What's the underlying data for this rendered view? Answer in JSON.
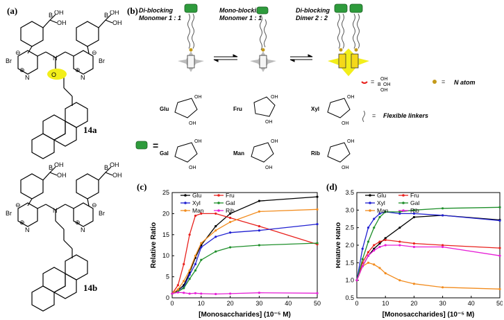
{
  "figure": {
    "panel_labels": {
      "a": "(a)",
      "b": "(b)",
      "c": "(c)",
      "d": "(d)"
    },
    "compounds": [
      "14a",
      "14b"
    ],
    "atoms": {
      "boron": "B",
      "hydroxyl": "OH",
      "bromide": "Br",
      "nitrogen": "N",
      "oxygen": "O",
      "charge_minus": "⊖",
      "charge_plus": "⊕"
    },
    "scheme": {
      "states": [
        {
          "line1": "Di-blocking",
          "line2": "Monomer 1 : 1"
        },
        {
          "line1": "Mono-blocking",
          "line2": "Monomer 1 : 1"
        },
        {
          "line1": "Di-blocking",
          "line2": "Dimer 2 : 2"
        }
      ],
      "legend": {
        "boronic_eq": "=",
        "n_atom": "N atom",
        "linkers": "Flexible linkers",
        "sugar_eq": "="
      },
      "sugars": [
        "Glu",
        "Fru",
        "Xyl",
        "Gal",
        "Man",
        "Rib"
      ]
    }
  },
  "colors": {
    "Glu": "#000000",
    "Fru": "#e8201c",
    "Xyl": "#1f1fd1",
    "Gal": "#1e8f2a",
    "Man": "#f28c1e",
    "Rib": "#e61ed6",
    "highlight": "#f2ee1a"
  },
  "chart_data": [
    {
      "id": "c",
      "type": "line",
      "xlabel": "[Monosaccharides] (10⁻⁵ M)",
      "ylabel": "Relative Ratio",
      "xlim": [
        0,
        50
      ],
      "ylim": [
        0,
        25
      ],
      "xticks": [
        0,
        10,
        20,
        30,
        40,
        50
      ],
      "yticks": [
        0,
        5,
        10,
        15,
        20,
        25
      ],
      "legend": "top-left-inside",
      "series": [
        {
          "name": "Glu",
          "x": [
            0,
            2,
            4,
            6,
            8,
            10,
            15,
            20,
            30,
            50
          ],
          "y": [
            1,
            1.8,
            3,
            6,
            9.5,
            12.5,
            17,
            20,
            23,
            24
          ]
        },
        {
          "name": "Fru",
          "x": [
            0,
            2,
            4,
            6,
            8,
            10,
            15,
            20,
            30,
            50
          ],
          "y": [
            1,
            3,
            8,
            15,
            19.5,
            20,
            20,
            19,
            17,
            12.7
          ]
        },
        {
          "name": "Xyl",
          "x": [
            0,
            2,
            4,
            6,
            8,
            10,
            15,
            20,
            30,
            50
          ],
          "y": [
            1,
            1.5,
            2.5,
            5.5,
            8,
            12,
            14.5,
            15.5,
            16,
            17.5
          ]
        },
        {
          "name": "Gal",
          "x": [
            0,
            2,
            4,
            6,
            8,
            10,
            15,
            20,
            30,
            50
          ],
          "y": [
            1,
            1.5,
            2.3,
            4.5,
            6.5,
            9,
            11,
            12,
            12.5,
            13
          ]
        },
        {
          "name": "Man",
          "x": [
            0,
            2,
            4,
            6,
            8,
            10,
            15,
            20,
            30,
            50
          ],
          "y": [
            1,
            2,
            4,
            6.5,
            10,
            13,
            16,
            18,
            20.5,
            21
          ]
        },
        {
          "name": "Rib",
          "x": [
            0,
            2,
            4,
            6,
            8,
            10,
            15,
            20,
            30,
            50
          ],
          "y": [
            1,
            1.3,
            1.2,
            1,
            1.1,
            1,
            0.9,
            1,
            1.2,
            1.1
          ]
        }
      ]
    },
    {
      "id": "d",
      "type": "line",
      "xlabel": "[Monosaccharides] (10⁻⁵ M)",
      "ylabel": "Relative Ratio",
      "xlim": [
        0,
        50
      ],
      "ylim": [
        0.5,
        3.5
      ],
      "xticks": [
        0,
        10,
        20,
        30,
        40,
        50
      ],
      "yticks": [
        0.5,
        1.0,
        1.5,
        2.0,
        2.5,
        3.0,
        3.5
      ],
      "legend": "top-left-inside",
      "series": [
        {
          "name": "Glu",
          "x": [
            0,
            2,
            4,
            6,
            8,
            10,
            15,
            20,
            30,
            50
          ],
          "y": [
            1,
            1.4,
            1.7,
            1.9,
            2.05,
            2.2,
            2.5,
            2.8,
            2.85,
            2.72
          ]
        },
        {
          "name": "Fru",
          "x": [
            0,
            2,
            4,
            6,
            8,
            10,
            15,
            20,
            30,
            50
          ],
          "y": [
            1,
            1.5,
            1.8,
            2.0,
            2.1,
            2.15,
            2.1,
            2.05,
            2.0,
            1.92
          ]
        },
        {
          "name": "Xyl",
          "x": [
            0,
            2,
            4,
            6,
            8,
            10,
            15,
            20,
            30,
            50
          ],
          "y": [
            1,
            1.9,
            2.5,
            2.75,
            2.9,
            2.95,
            2.9,
            2.9,
            2.85,
            2.7
          ]
        },
        {
          "name": "Gal",
          "x": [
            0,
            2,
            4,
            6,
            8,
            10,
            15,
            20,
            30,
            50
          ],
          "y": [
            1,
            1.6,
            2.1,
            2.5,
            2.8,
            2.95,
            2.95,
            3.0,
            3.05,
            3.08
          ]
        },
        {
          "name": "Man",
          "x": [
            0,
            2,
            4,
            6,
            8,
            10,
            15,
            20,
            30,
            50
          ],
          "y": [
            1,
            1.4,
            1.5,
            1.45,
            1.35,
            1.2,
            1.0,
            0.9,
            0.8,
            0.75
          ]
        },
        {
          "name": "Rib",
          "x": [
            0,
            2,
            4,
            6,
            8,
            10,
            15,
            20,
            30,
            50
          ],
          "y": [
            1,
            1.4,
            1.7,
            1.85,
            1.95,
            2.0,
            2.0,
            1.95,
            1.95,
            1.7
          ]
        }
      ]
    }
  ]
}
